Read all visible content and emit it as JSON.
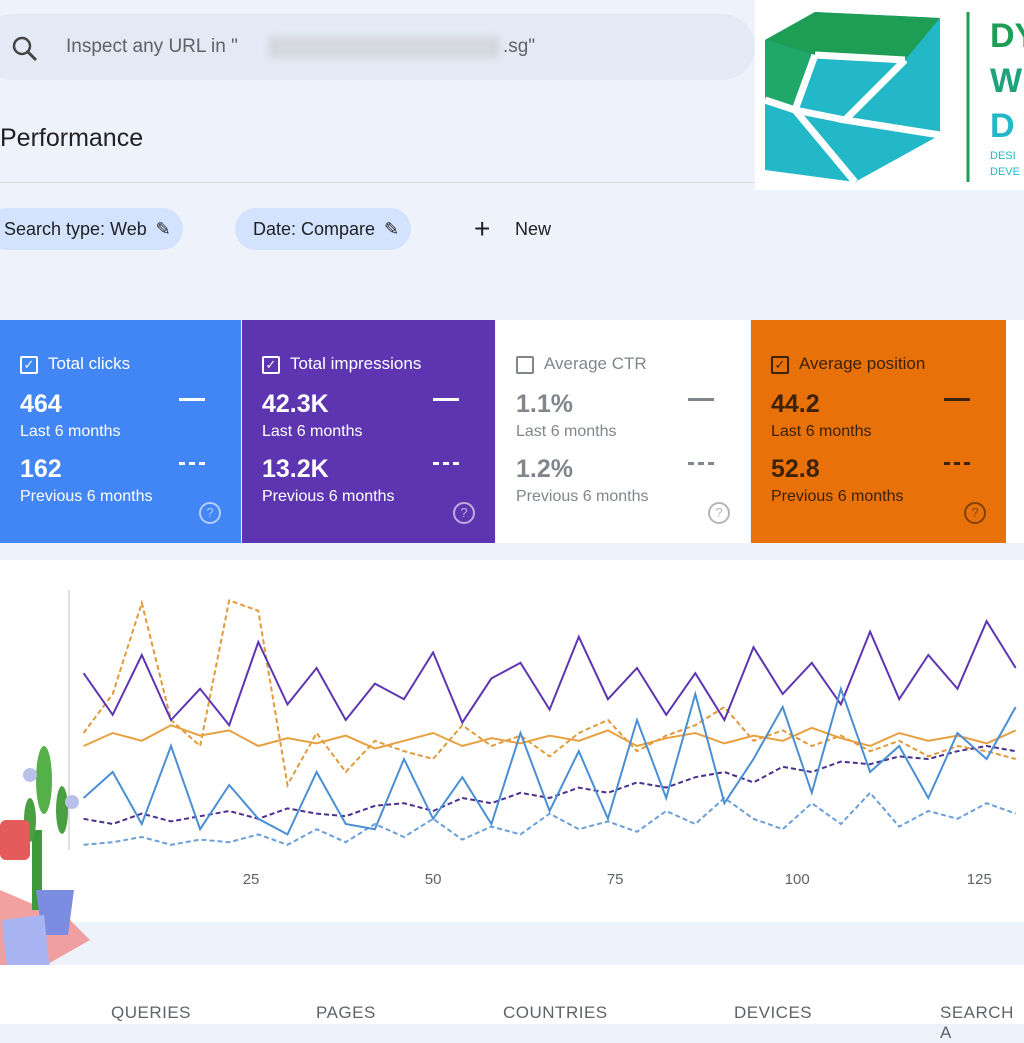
{
  "search": {
    "text_start": "Inspect any URL in \"",
    "text_end": ".sg\""
  },
  "logo": {
    "big": [
      "DY",
      "W",
      "D"
    ],
    "small": [
      "DESI",
      "DEVE"
    ]
  },
  "page_title": "Performance",
  "filters": [
    "Search type: Web",
    "Date: Compare"
  ],
  "new_button": "New",
  "cards": [
    {
      "label": "Total clicks",
      "value": "464",
      "period": "Last 6 months",
      "prev_value": "162",
      "prev_period": "Previous 6 months",
      "checked": true,
      "color": "#4285f4",
      "text_color": "#ffffff"
    },
    {
      "label": "Total impressions",
      "value": "42.3K",
      "period": "Last 6 months",
      "prev_value": "13.2K",
      "prev_period": "Previous 6 months",
      "checked": true,
      "color": "#5e35b1",
      "text_color": "#ffffff"
    },
    {
      "label": "Average CTR",
      "value": "1.1%",
      "period": "Last 6 months",
      "prev_value": "1.2%",
      "prev_period": "Previous 6 months",
      "checked": false,
      "color": "#ffffff",
      "text_color": "#80868b"
    },
    {
      "label": "Average position",
      "value": "44.2",
      "period": "Last 6 months",
      "prev_value": "52.8",
      "prev_period": "Previous 6 months",
      "checked": true,
      "color": "#e8710a",
      "text_color": "#3c2208"
    }
  ],
  "chart_data": {
    "type": "line",
    "x": [
      2,
      6,
      10,
      14,
      18,
      22,
      26,
      30,
      34,
      38,
      42,
      46,
      50,
      54,
      58,
      62,
      66,
      70,
      74,
      78,
      82,
      86,
      90,
      94,
      98,
      102,
      106,
      110,
      114,
      118,
      122,
      126,
      130
    ],
    "xlim": [
      0,
      131
    ],
    "xticks": [
      25,
      50,
      75,
      100,
      125
    ],
    "ylim": [
      0,
      100
    ],
    "series": [
      {
        "color": "#e09a3a",
        "dashed": true,
        "values": [
          45,
          60,
          95,
          50,
          40,
          96,
          92,
          25,
          45,
          30,
          42,
          38,
          35,
          48,
          40,
          44,
          36,
          45,
          50,
          38,
          44,
          48,
          55,
          42,
          46,
          40,
          44,
          38,
          42,
          36,
          40,
          38,
          35
        ]
      },
      {
        "color": "#e8a040",
        "dashed": false,
        "values": [
          40,
          45,
          42,
          48,
          44,
          46,
          40,
          43,
          41,
          44,
          39,
          42,
          45,
          40,
          43,
          41,
          44,
          42,
          46,
          40,
          43,
          45,
          41,
          44,
          42,
          47,
          43,
          40,
          45,
          42,
          44,
          41,
          46
        ]
      },
      {
        "color": "#4a2f8f",
        "dashed": true,
        "values": [
          12,
          10,
          14,
          11,
          13,
          15,
          12,
          16,
          14,
          13,
          17,
          18,
          15,
          20,
          18,
          22,
          20,
          24,
          22,
          26,
          24,
          28,
          30,
          26,
          32,
          30,
          34,
          33,
          36,
          35,
          38,
          40,
          38
        ]
      },
      {
        "color": "#5e35b1",
        "dashed": false,
        "values": [
          68,
          52,
          75,
          50,
          62,
          48,
          80,
          56,
          70,
          50,
          64,
          58,
          76,
          49,
          66,
          72,
          54,
          82,
          58,
          70,
          52,
          68,
          50,
          78,
          60,
          72,
          56,
          84,
          58,
          75,
          62,
          88,
          70
        ]
      },
      {
        "color": "#6a9fd8",
        "dashed": true,
        "values": [
          2,
          3,
          5,
          2,
          4,
          3,
          6,
          2,
          8,
          3,
          10,
          5,
          12,
          4,
          9,
          6,
          14,
          8,
          11,
          7,
          15,
          10,
          20,
          12,
          8,
          18,
          10,
          22,
          9,
          15,
          12,
          18,
          14
        ]
      },
      {
        "color": "#4a8fd4",
        "dashed": false,
        "values": [
          20,
          30,
          10,
          40,
          8,
          25,
          12,
          6,
          30,
          10,
          8,
          35,
          12,
          28,
          10,
          45,
          15,
          38,
          12,
          50,
          20,
          60,
          18,
          35,
          55,
          22,
          62,
          30,
          40,
          20,
          45,
          35,
          55
        ]
      }
    ]
  },
  "tabs": [
    "QUERIES",
    "PAGES",
    "COUNTRIES",
    "DEVICES",
    "SEARCH A"
  ]
}
